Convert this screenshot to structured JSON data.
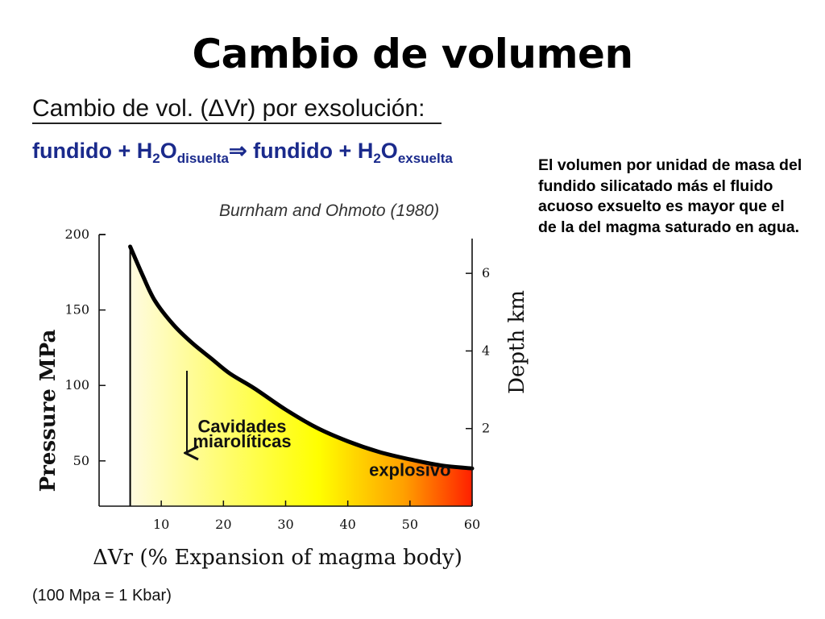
{
  "slide": {
    "title": "Cambio de volumen",
    "heading": "Cambio de vol. (ΔVr) por exsolución:",
    "equation": {
      "part1": "fundido + H",
      "sub1": "2",
      "part2": "O",
      "sub2": "disuelta",
      "arrow": "⇒",
      "part3": " fundido + H",
      "sub3": "2",
      "part4": "O",
      "sub4": "exsuelta"
    },
    "citation": "Burnham and Ohmoto (1980)",
    "description": "El volumen por unidad de masa del fundido silicatado más el fluido acuoso exsuelto es mayor que el de la del magma saturado en agua.",
    "footnote": "(100 Mpa = 1 Kbar)"
  },
  "colors": {
    "equation_text": "#1a2a8c",
    "curve": "#000000",
    "gradient_start": "#fffbe0",
    "gradient_mid": "#ffff00",
    "gradient_orange": "#ffa000",
    "gradient_end": "#ff2000"
  },
  "chart_data": {
    "type": "area",
    "xlabel": "ΔVr (% Expansion of magma body)",
    "ylabel": "Pressure MPa",
    "y2label": "Depth km",
    "xlim": [
      0,
      60
    ],
    "ylim": [
      20,
      200
    ],
    "y2lim": [
      0,
      7
    ],
    "xticks": [
      10,
      20,
      30,
      40,
      50,
      60
    ],
    "yticks": [
      50,
      100,
      150,
      200
    ],
    "y2ticks": [
      2,
      4,
      6
    ],
    "grid": false,
    "series": [
      {
        "x": [
          5,
          7,
          9,
          12,
          15,
          18,
          21,
          25,
          30,
          35,
          40,
          45,
          50,
          55,
          60
        ],
        "y": [
          192,
          173,
          156,
          140,
          128,
          118,
          108,
          98,
          84,
          72,
          63,
          56,
          51,
          47,
          45
        ]
      }
    ],
    "annotations": [
      {
        "text": "Cavidades",
        "x": 23,
        "y": 69
      },
      {
        "text": "miarolíticas",
        "x": 23,
        "y": 59
      },
      {
        "text": "explosivo",
        "x": 50,
        "y": 40
      }
    ]
  }
}
